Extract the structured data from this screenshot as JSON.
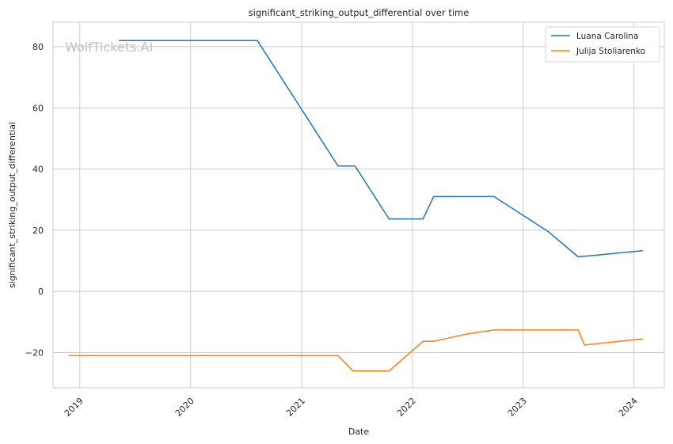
{
  "chart_data": {
    "type": "line",
    "title": "significant_striking_output_differential over time",
    "xlabel": "Date",
    "ylabel": "significant_striking_output_differential",
    "watermark": "WolfTickets.AI",
    "grid": true,
    "legend_position": "top-right",
    "xlim": [
      "2018-10-05",
      "2024-04-10"
    ],
    "ylim": [
      -31.5,
      88
    ],
    "x_ticks": [
      "2019-01-01",
      "2020-01-01",
      "2021-01-01",
      "2022-01-01",
      "2023-01-01",
      "2024-01-01"
    ],
    "x_tick_labels": [
      "2019",
      "2020",
      "2021",
      "2022",
      "2023",
      "2024"
    ],
    "y_ticks": [
      -20,
      0,
      20,
      40,
      60,
      80
    ],
    "y_tick_labels": [
      "−20",
      "0",
      "20",
      "40",
      "60",
      "80"
    ],
    "series": [
      {
        "name": "Luana Carolina",
        "color": "#1f77b4",
        "points": [
          [
            "2019-05-10",
            82
          ],
          [
            "2020-08-08",
            82
          ],
          [
            "2021-05-01",
            41
          ],
          [
            "2021-06-26",
            41
          ],
          [
            "2021-10-16",
            23.7
          ],
          [
            "2022-02-05",
            23.7
          ],
          [
            "2022-03-12",
            31
          ],
          [
            "2022-09-27",
            31
          ],
          [
            "2023-03-25",
            19.5
          ],
          [
            "2023-07-01",
            11.3
          ],
          [
            "2023-07-22",
            11.5
          ],
          [
            "2024-01-30",
            13.3
          ]
        ]
      },
      {
        "name": "Julija Stoliarenko",
        "color": "#ff7f0e",
        "points": [
          [
            "2018-11-25",
            -21
          ],
          [
            "2021-05-01",
            -21
          ],
          [
            "2021-06-19",
            -26
          ],
          [
            "2021-10-16",
            -26
          ],
          [
            "2022-02-05",
            -16.3
          ],
          [
            "2022-03-12",
            -16.3
          ],
          [
            "2022-06-25",
            -14
          ],
          [
            "2022-09-27",
            -12.6
          ],
          [
            "2023-07-01",
            -12.6
          ],
          [
            "2023-07-22",
            -17.5
          ],
          [
            "2024-01-30",
            -15.5
          ]
        ]
      }
    ]
  }
}
